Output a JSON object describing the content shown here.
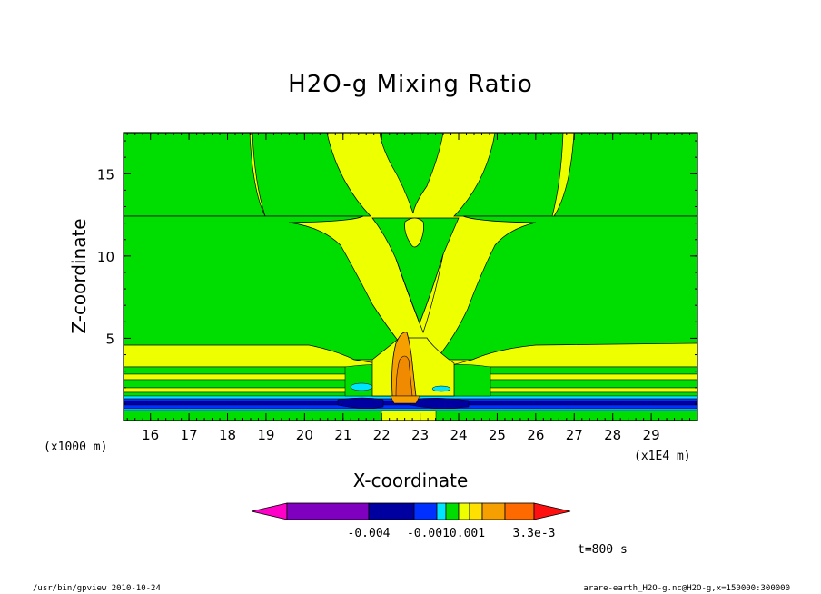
{
  "chart_data": {
    "type": "contour",
    "title": "H2O-g Mixing Ratio",
    "xlabel": "X-coordinate",
    "ylabel": "Z-coordinate",
    "x_unit": "(x1E4 m)",
    "y_unit": "(x1000 m)",
    "xlim": [
      15.3,
      30.2
    ],
    "ylim": [
      0,
      17.5
    ],
    "x_ticks": [
      16,
      17,
      18,
      19,
      20,
      21,
      22,
      23,
      24,
      25,
      26,
      27,
      28,
      29
    ],
    "y_ticks": [
      5,
      10,
      15
    ],
    "colorbar_labels": [
      "-0.004",
      "-0.0010.001",
      "3.3e-3"
    ],
    "time_label": "t=800 s",
    "colors": {
      "green": "#00dd00",
      "yellow": "#eeff00",
      "orange": "#f5a000",
      "blue": "#0030ff",
      "darkblue": "#0000a0",
      "cyan": "#00e5ff"
    }
  },
  "footer": {
    "left": "/usr/bin/gpview  2010-10-24",
    "right": "arare-earth_H2O-g.nc@H2O-g,x=150000:300000"
  }
}
